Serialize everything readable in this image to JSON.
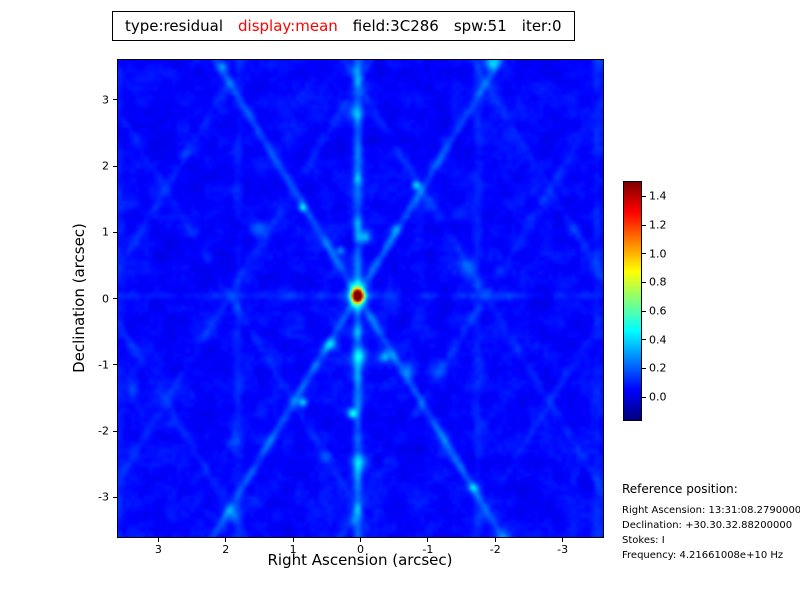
{
  "title_bar": {
    "segments": [
      {
        "text": "type:residual",
        "color": "#000000"
      },
      {
        "text": "display:mean",
        "color": "#ff0000"
      },
      {
        "text": "field:3C286",
        "color": "#000000"
      },
      {
        "text": "spw:51",
        "color": "#000000"
      },
      {
        "text": "iter:0",
        "color": "#000000"
      }
    ]
  },
  "chart_data": {
    "type": "heatmap",
    "title": "",
    "xlabel": "Right Ascension (arcsec)",
    "ylabel": "Declination (arcsec)",
    "xlim": [
      3.6,
      -3.6
    ],
    "ylim": [
      -3.6,
      3.6
    ],
    "x_ticks": [
      3,
      2,
      1,
      0,
      -1,
      -2,
      -3
    ],
    "y_ticks": [
      3,
      2,
      1,
      0,
      -1,
      -2,
      -3
    ],
    "grid": false,
    "colormap": "jet",
    "colorbar": {
      "range": [
        -0.16,
        1.5
      ],
      "ticks": [
        1.4,
        1.2,
        1.0,
        0.8,
        0.6,
        0.4,
        0.2,
        0.0
      ],
      "position": "right"
    },
    "peak_source": {
      "x": 0.05,
      "y": 0.05,
      "value": 1.5
    },
    "background_rms": 0.05,
    "description": "Interferometric residual map: deep blue noise floor near 0 with cyan sidelobe streaks (six-armed web pattern) radiating from a compact bright source (peak ~1.5, red/yellow core) at the field center (0,0)"
  },
  "reference_position": {
    "heading": "Reference position:",
    "lines": [
      "Right Ascension: 13:31:08.27900000",
      "Declination: +30.30.32.88200000",
      "Stokes: I",
      "Frequency: 4.21661008e+10 Hz"
    ]
  }
}
